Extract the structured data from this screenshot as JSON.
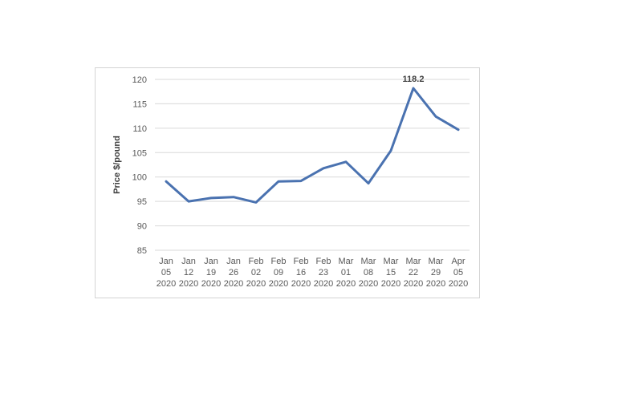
{
  "chart_data": {
    "type": "line",
    "title": "",
    "xlabel": "",
    "ylabel": "Price $/pound",
    "ylim": [
      85,
      120
    ],
    "yticks": [
      85,
      90,
      95,
      100,
      105,
      110,
      115,
      120
    ],
    "grid": true,
    "legend": "none",
    "categories": [
      [
        "Jan",
        "05",
        "2020"
      ],
      [
        "Jan",
        "12",
        "2020"
      ],
      [
        "Jan",
        "19",
        "2020"
      ],
      [
        "Jan",
        "26",
        "2020"
      ],
      [
        "Feb",
        "02",
        "2020"
      ],
      [
        "Feb",
        "09",
        "2020"
      ],
      [
        "Feb",
        "16",
        "2020"
      ],
      [
        "Feb",
        "23",
        "2020"
      ],
      [
        "Mar",
        "01",
        "2020"
      ],
      [
        "Mar",
        "08",
        "2020"
      ],
      [
        "Mar",
        "15",
        "2020"
      ],
      [
        "Mar",
        "22",
        "2020"
      ],
      [
        "Mar",
        "29",
        "2020"
      ],
      [
        "Apr",
        "05",
        "2020"
      ]
    ],
    "series": [
      {
        "values": [
          99.1,
          95.0,
          95.7,
          95.9,
          94.8,
          99.1,
          99.2,
          101.8,
          103.1,
          98.7,
          105.4,
          118.2,
          112.4,
          109.7
        ],
        "color": "#4a72b0"
      }
    ],
    "annotations": [
      {
        "index": 11,
        "text": "118.2"
      }
    ]
  }
}
